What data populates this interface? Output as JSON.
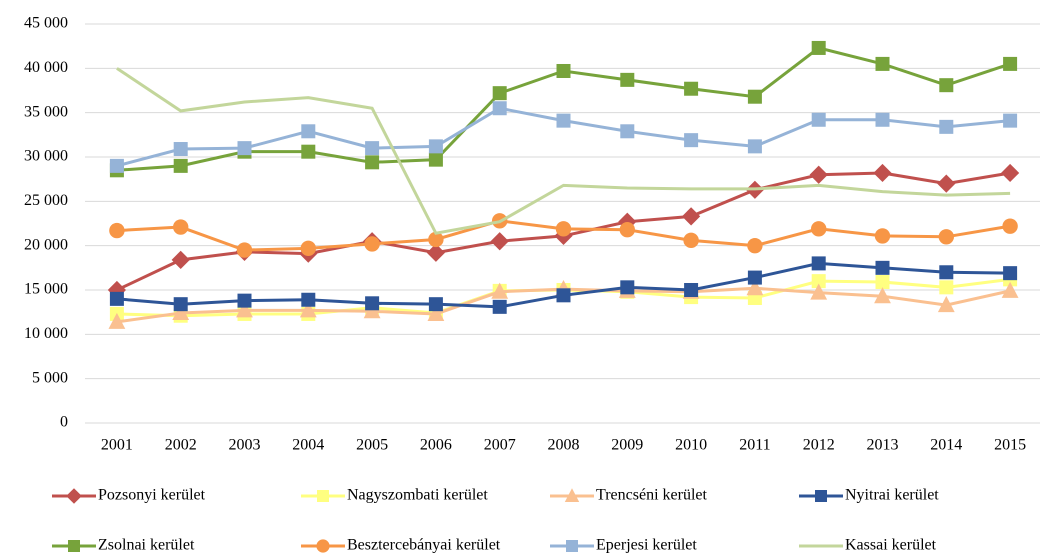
{
  "chart_data": {
    "type": "line",
    "categories": [
      "2001",
      "2002",
      "2003",
      "2004",
      "2005",
      "2006",
      "2007",
      "2008",
      "2009",
      "2010",
      "2011",
      "2012",
      "2013",
      "2014",
      "2015"
    ],
    "series": [
      {
        "name": "Pozsonyi kerület",
        "color": "#c0504d",
        "marker": "diamond",
        "values": [
          15000,
          18400,
          19300,
          19100,
          20500,
          19200,
          20500,
          21100,
          22700,
          23300,
          26300,
          28000,
          28200,
          27000,
          28200
        ]
      },
      {
        "name": "Nagyszombati kerület",
        "color": "#ffff80",
        "marker": "square",
        "values": [
          12300,
          12100,
          12300,
          12300,
          13000,
          12400,
          14900,
          15000,
          14800,
          14200,
          14100,
          16000,
          15900,
          15300,
          16200
        ]
      },
      {
        "name": "Trencséni kerület",
        "color": "#fac090",
        "marker": "triangle",
        "values": [
          11400,
          12400,
          12700,
          12700,
          12600,
          12300,
          14800,
          15100,
          14900,
          14800,
          15200,
          14700,
          14300,
          13300,
          14900
        ]
      },
      {
        "name": "Nyitrai kerület",
        "color": "#2e5597",
        "marker": "square",
        "values": [
          14000,
          13400,
          13800,
          13900,
          13500,
          13400,
          13100,
          14400,
          15300,
          15000,
          16400,
          18000,
          17500,
          17000,
          16900
        ]
      },
      {
        "name": "Zsolnai kerület",
        "color": "#77a33b",
        "marker": "square",
        "values": [
          28500,
          29000,
          30600,
          30600,
          29400,
          29700,
          37200,
          39700,
          38700,
          37700,
          36800,
          42300,
          40500,
          38100,
          40500
        ]
      },
      {
        "name": "Besztercebányai kerület",
        "color": "#f79646",
        "marker": "circle",
        "values": [
          21700,
          22100,
          19500,
          19700,
          20200,
          20700,
          22800,
          21900,
          21800,
          20600,
          20000,
          21900,
          21100,
          21000,
          22200
        ]
      },
      {
        "name": "Eperjesi kerület",
        "color": "#95b3d7",
        "marker": "square",
        "values": [
          29000,
          30900,
          31000,
          32900,
          31000,
          31200,
          35500,
          34100,
          32900,
          31900,
          31200,
          34200,
          34200,
          33400,
          34100
        ]
      },
      {
        "name": "Kassai kerület",
        "color": "#c3d69b",
        "marker": "none",
        "values": [
          40000,
          35200,
          36200,
          36700,
          35500,
          21400,
          22700,
          26800,
          26500,
          26400,
          26400,
          26800,
          26100,
          25700,
          25900
        ]
      }
    ],
    "ylim": [
      0,
      45000
    ],
    "yticks": [
      0,
      {
        "value": 5000,
        "label": "5 000"
      },
      {
        "value": 10000,
        "label": "10 000"
      },
      {
        "value": 15000,
        "label": "15 000"
      },
      {
        "value": 20000,
        "label": "20 000"
      },
      {
        "value": 25000,
        "label": "25 000"
      },
      {
        "value": 30000,
        "label": "30 000"
      },
      {
        "value": 35000,
        "label": "35 000"
      },
      {
        "value": 40000,
        "label": "40 000"
      },
      {
        "value": 45000,
        "label": "45 000"
      }
    ],
    "grid": true,
    "legend": "bottom"
  }
}
